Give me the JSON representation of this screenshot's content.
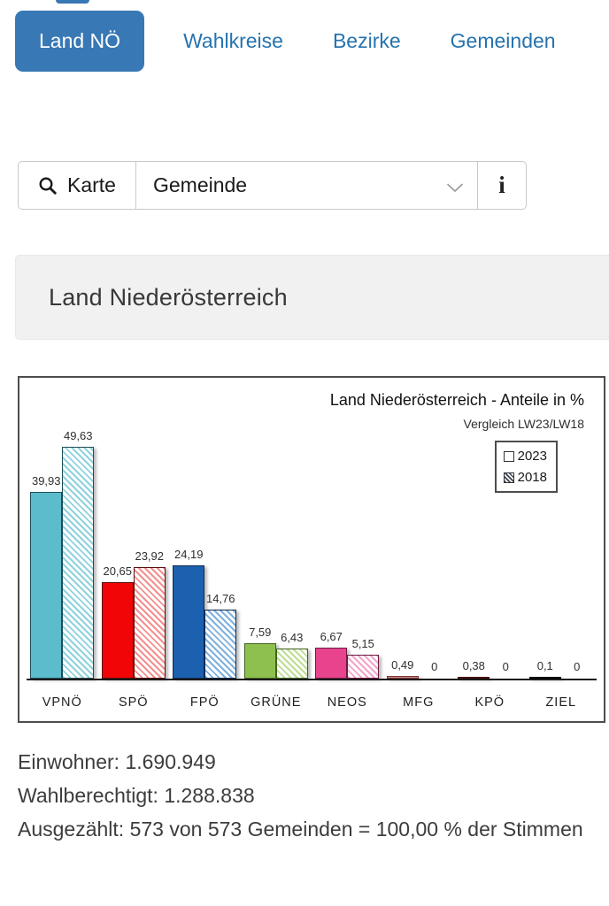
{
  "tabs": {
    "items": [
      {
        "label": "Land NÖ",
        "active": true
      },
      {
        "label": "Wahlkreise",
        "active": false
      },
      {
        "label": "Bezirke",
        "active": false
      },
      {
        "label": "Gemeinden",
        "active": false
      }
    ]
  },
  "toolbar": {
    "map_button_label": "Karte",
    "search_icon": "magnifier-icon",
    "select_value": "Gemeinde",
    "info_icon_glyph": "i"
  },
  "header": {
    "title": "Land Niederösterreich"
  },
  "chart_data": {
    "type": "bar",
    "title": "Land Niederösterreich - Anteile in %",
    "subtitle": "Vergleich LW23/LW18",
    "legend": [
      {
        "label": "2023",
        "style": "solid-empty"
      },
      {
        "label": "2018",
        "style": "hatched"
      }
    ],
    "legend_position": "top-right",
    "grid": false,
    "unit": "%",
    "ylim": [
      0,
      52
    ],
    "categories": [
      "VPNÖ",
      "SPÖ",
      "FPÖ",
      "GRÜNE",
      "NEOS",
      "MFG",
      "KPÖ",
      "ZIEL"
    ],
    "series": [
      {
        "name": "2023",
        "values": [
          39.93,
          20.65,
          24.19,
          7.59,
          6.67,
          0.49,
          0.38,
          0.1
        ],
        "labels": [
          "39,93",
          "20,65",
          "24,19",
          "7,59",
          "6,67",
          "0,49",
          "0,38",
          "0,1"
        ]
      },
      {
        "name": "2018",
        "values": [
          49.63,
          23.92,
          14.76,
          6.43,
          5.15,
          0,
          0,
          0
        ],
        "labels": [
          "49,63",
          "23,92",
          "14,76",
          "6,43",
          "5,15",
          "0",
          "0",
          "0"
        ]
      }
    ],
    "party_colors": [
      {
        "fill": "#5cbccb",
        "border": "#1f4e58",
        "hatch": "#8fd2dd"
      },
      {
        "fill": "#f10506",
        "border": "#550c0c",
        "hatch": "#f48f8f"
      },
      {
        "fill": "#1c61b0",
        "border": "#0c2b50",
        "hatch": "#7fb0dd"
      },
      {
        "fill": "#8ec050",
        "border": "#40641d",
        "hatch": "#bedd92"
      },
      {
        "fill": "#e8438d",
        "border": "#6e1a41",
        "hatch": "#f3a4cb"
      },
      {
        "fill": "#c98f8f",
        "border": "#7e3535",
        "hatch": "#e0c0c0"
      },
      {
        "fill": "#8c2123",
        "border": "#430d0e",
        "hatch": "#c08788"
      },
      {
        "fill": "#1c1c1c",
        "border": "#000000",
        "hatch": "#999999"
      }
    ],
    "colors": {
      "accent_tab": "#3878b4",
      "link_blue": "#2673ae",
      "panel_border": "#4d4d4d"
    }
  },
  "stats": {
    "lines": [
      "Einwohner: 1.690.949",
      "Wahlberechtigt: 1.288.838",
      "Ausgezählt: 573 von 573 Gemeinden = 100,00 % der Stimmen"
    ]
  }
}
